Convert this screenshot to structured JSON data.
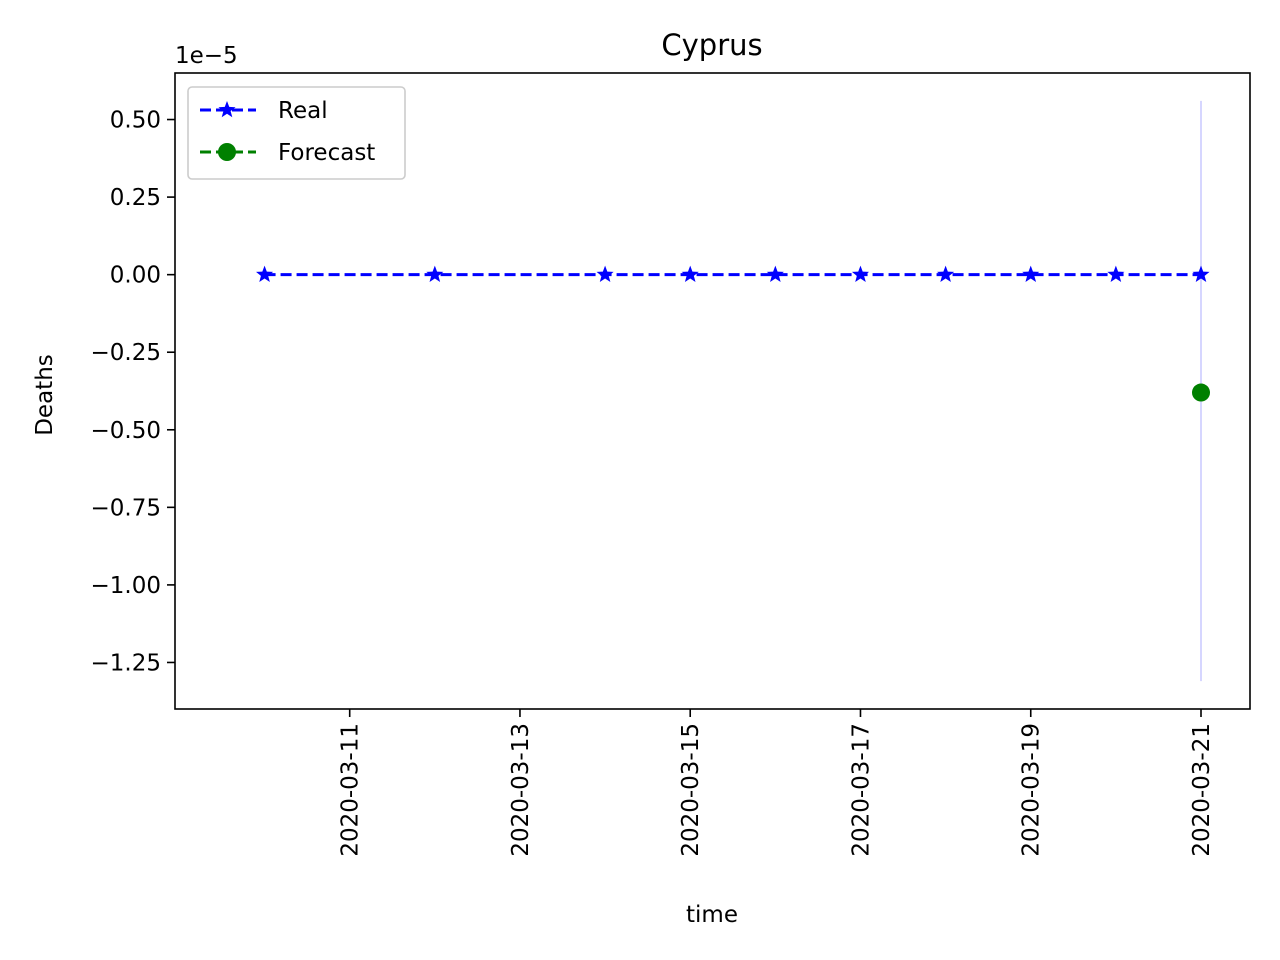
{
  "chart_data": {
    "type": "line",
    "title": "Cyprus",
    "xlabel": "time",
    "ylabel": "Deaths",
    "y_offset_label": "1e−5",
    "y_scale_exponent": -5,
    "x_ticks": [
      "2020-03-11",
      "2020-03-13",
      "2020-03-15",
      "2020-03-17",
      "2020-03-19",
      "2020-03-21"
    ],
    "y_ticks": [
      "0.50",
      "0.25",
      "0.00",
      "−0.25",
      "−0.50",
      "−0.75",
      "−1.00",
      "−1.25"
    ],
    "ylim": [
      -1.4e-05,
      6.5e-06
    ],
    "xlim": [
      "2020-03-09",
      "2020-03-21"
    ],
    "grid": false,
    "legend_position": "top-left",
    "series": [
      {
        "name": "Real",
        "color": "#0000ff",
        "marker": "star",
        "line_style": "dashed",
        "x": [
          "2020-03-10",
          "2020-03-12",
          "2020-03-14",
          "2020-03-15",
          "2020-03-16",
          "2020-03-17",
          "2020-03-18",
          "2020-03-19",
          "2020-03-20",
          "2020-03-21"
        ],
        "values": [
          0,
          0,
          0,
          0,
          0,
          0,
          0,
          0,
          0,
          0
        ]
      },
      {
        "name": "Forecast",
        "color": "#008000",
        "marker": "circle",
        "line_style": "dashed",
        "x": [
          "2020-03-21"
        ],
        "values": [
          -3.8e-06
        ]
      }
    ],
    "interval": {
      "x": "2020-03-21",
      "low": -1.31e-05,
      "high": 5.6e-06,
      "color": "#ccccff"
    }
  }
}
